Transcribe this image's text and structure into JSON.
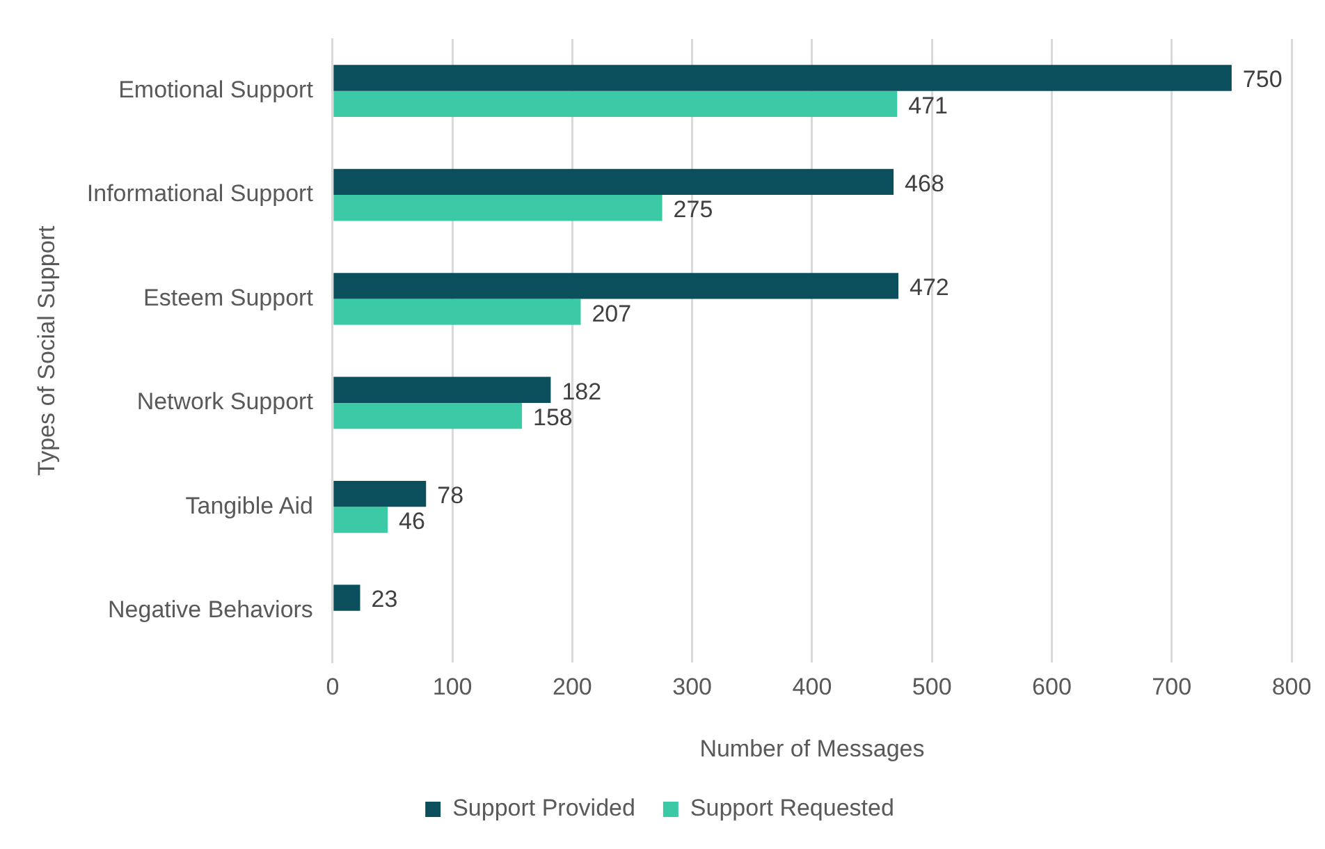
{
  "chart_data": {
    "type": "bar",
    "orientation": "horizontal",
    "xlabel": "Number of Messages",
    "ylabel": "Types of Social Support",
    "categories": [
      "Emotional Support",
      "Informational Support",
      "Esteem Support",
      "Network Support",
      "Tangible Aid",
      "Negative Behaviors"
    ],
    "series": [
      {
        "name": "Support Provided",
        "color": "#0b4f5c",
        "values": [
          750,
          468,
          472,
          182,
          78,
          23
        ]
      },
      {
        "name": "Support Requested",
        "color": "#3cc9a6",
        "values": [
          471,
          275,
          207,
          158,
          46,
          null
        ]
      }
    ],
    "xlim": [
      0,
      800
    ],
    "xticks": [
      0,
      100,
      200,
      300,
      400,
      500,
      600,
      700,
      800
    ],
    "grid": "x",
    "legend": "bottom",
    "data_labels": true
  }
}
